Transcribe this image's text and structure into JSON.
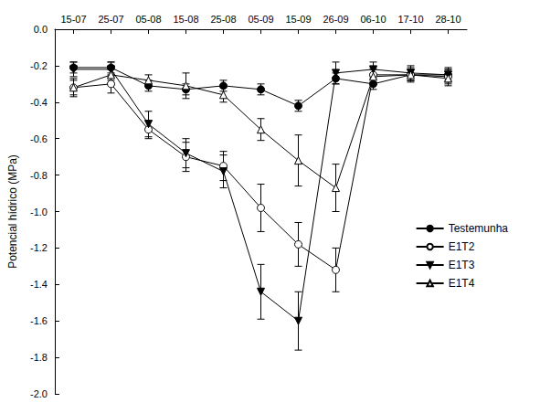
{
  "chart_data": {
    "type": "line",
    "y_label": "Potencial hídrico (MPa)",
    "categories": [
      "15-07",
      "25-07",
      "05-08",
      "15-08",
      "25-08",
      "05-09",
      "15-09",
      "26-09",
      "06-10",
      "17-10",
      "28-10"
    ],
    "ylim": [
      -2.0,
      0.0
    ],
    "yticks": [
      {
        "value": -2.0,
        "label": "-2.0"
      },
      -1.8,
      -1.6,
      -1.4,
      -1.2,
      {
        "value": -1.0,
        "label": "-1.0"
      },
      -0.8,
      -0.6,
      -0.4,
      -0.2,
      {
        "value": 0.0,
        "label": "0.0"
      }
    ],
    "grid": false,
    "legend": "lower right",
    "series": [
      {
        "name": "Testemunha",
        "color": "#000000",
        "marker": "filled_circle",
        "values": [
          -0.21,
          -0.21,
          -0.31,
          -0.33,
          -0.31,
          -0.33,
          -0.42,
          -0.27,
          -0.3,
          -0.25,
          -0.25
        ],
        "errors": [
          0.03,
          0.03,
          0.03,
          0.03,
          0.03,
          0.03,
          0.03,
          0.03,
          0.03,
          0.03,
          0.03
        ]
      },
      {
        "name": "E1T2",
        "color": "#000000",
        "marker": "open_circle",
        "values": [
          -0.32,
          -0.3,
          -0.55,
          -0.7,
          -0.75,
          -0.98,
          -1.18,
          -1.32,
          -0.25,
          -0.25,
          -0.26
        ],
        "errors": [
          0.05,
          0.05,
          0.05,
          0.08,
          0.08,
          0.13,
          0.12,
          0.12,
          0.04,
          0.04,
          0.04
        ]
      },
      {
        "name": "E1T3",
        "color": "#000000",
        "marker": "filled_triangle_down",
        "values": [
          -0.22,
          -0.22,
          -0.52,
          -0.68,
          -0.78,
          -1.44,
          -1.6,
          -0.24,
          -0.22,
          -0.24,
          -0.25
        ],
        "errors": [
          0.04,
          0.04,
          0.07,
          0.08,
          0.09,
          0.15,
          0.16,
          0.06,
          0.04,
          0.04,
          0.04
        ]
      },
      {
        "name": "E1T4",
        "color": "#000000",
        "marker": "open_triangle_up",
        "values": [
          -0.32,
          -0.25,
          -0.28,
          -0.31,
          -0.36,
          -0.55,
          -0.72,
          -0.87,
          -0.26,
          -0.25,
          -0.27
        ],
        "errors": [
          0.04,
          0.03,
          0.03,
          0.07,
          0.04,
          0.06,
          0.14,
          0.13,
          0.04,
          0.03,
          0.04
        ]
      }
    ]
  }
}
